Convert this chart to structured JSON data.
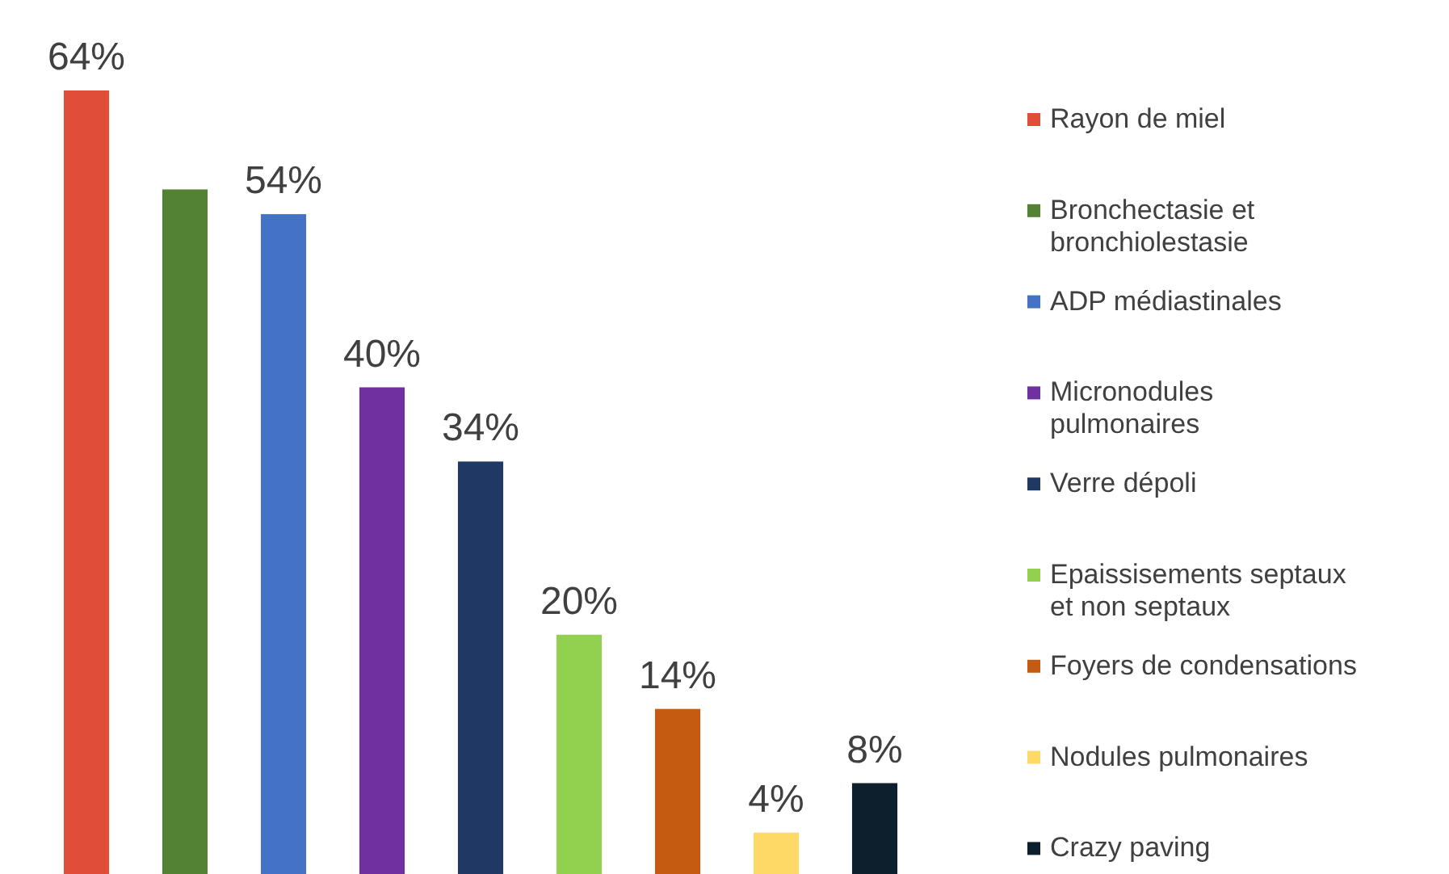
{
  "chart_data": {
    "type": "bar",
    "stacked": true,
    "categories": [
      null,
      null,
      null,
      null,
      null,
      null,
      null,
      null,
      null
    ],
    "series": [
      {
        "name": "Rayon de miel",
        "color": "#e04e39",
        "values": [
          64,
          null,
          null,
          null,
          null,
          null,
          null,
          null,
          null
        ],
        "value_labels": [
          "64%",
          null,
          null,
          null,
          null,
          null,
          null,
          null,
          null
        ]
      },
      {
        "name": "Bronchectasie et bronchiolestasie",
        "color": "#548235",
        "values": [
          null,
          56,
          null,
          null,
          null,
          null,
          null,
          null,
          null
        ],
        "value_labels": [
          null,
          null,
          null,
          null,
          null,
          null,
          null,
          null,
          null
        ]
      },
      {
        "name": "ADP médiastinales",
        "color": "#4472c4",
        "values": [
          null,
          null,
          54,
          null,
          null,
          null,
          null,
          null,
          null
        ],
        "value_labels": [
          null,
          null,
          "54%",
          null,
          null,
          null,
          null,
          null,
          null
        ]
      },
      {
        "name": "Micronodules pulmonaires",
        "color": "#7030a0",
        "values": [
          null,
          null,
          null,
          40,
          null,
          null,
          null,
          null,
          null
        ],
        "value_labels": [
          null,
          null,
          null,
          "40%",
          null,
          null,
          null,
          null,
          null
        ]
      },
      {
        "name": "Verre dépoli",
        "color": "#203864",
        "values": [
          null,
          null,
          null,
          null,
          34,
          null,
          null,
          null,
          null
        ],
        "value_labels": [
          null,
          null,
          null,
          null,
          "34%",
          null,
          null,
          null,
          null
        ]
      },
      {
        "name": "Epaissisements septaux et non septaux",
        "color": "#92d050",
        "values": [
          null,
          null,
          null,
          null,
          null,
          20,
          null,
          null,
          null
        ],
        "value_labels": [
          null,
          null,
          null,
          null,
          null,
          "20%",
          null,
          null,
          null
        ]
      },
      {
        "name": "Foyers de condensations",
        "color": "#c55a11",
        "values": [
          null,
          null,
          null,
          null,
          null,
          null,
          14,
          null,
          null
        ],
        "value_labels": [
          null,
          null,
          null,
          null,
          null,
          null,
          "14%",
          null,
          null
        ]
      },
      {
        "name": "Nodules pulmonaires",
        "color": "#ffd966",
        "values": [
          null,
          null,
          null,
          null,
          null,
          null,
          null,
          4,
          null
        ],
        "value_labels": [
          null,
          null,
          null,
          null,
          null,
          null,
          null,
          "4%",
          null
        ]
      },
      {
        "name": "Crazy paving",
        "color": "#0d1f2d",
        "values": [
          null,
          null,
          null,
          null,
          null,
          null,
          null,
          null,
          8
        ],
        "value_labels": [
          null,
          null,
          null,
          null,
          null,
          null,
          null,
          null,
          "8%"
        ]
      }
    ],
    "legend": "right"
  }
}
